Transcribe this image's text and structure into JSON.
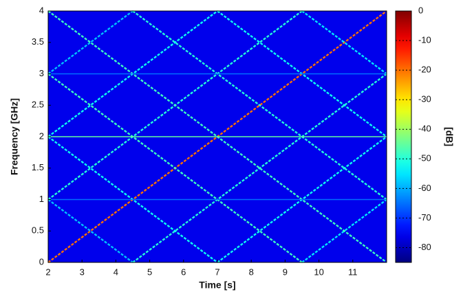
{
  "chart_data": {
    "type": "spectrogram",
    "xlabel": "Time [s]",
    "ylabel": "Frequency [GHz]",
    "colorbar_label": "[dB]",
    "xlim": [
      2,
      12
    ],
    "xticks": [
      2,
      3,
      4,
      5,
      6,
      7,
      8,
      9,
      10,
      11
    ],
    "ylim": [
      0,
      4
    ],
    "yticks": [
      0,
      0.5,
      1,
      1.5,
      2,
      2.5,
      3,
      3.5,
      4
    ],
    "clim": [
      -85,
      0
    ],
    "cticks": [
      0,
      -10,
      -20,
      -30,
      -40,
      -50,
      -60,
      -70,
      -80
    ],
    "colormap": "jet",
    "background_level": -76,
    "lines": [
      {
        "x": [
          2,
          12
        ],
        "y": [
          0,
          4
        ],
        "level": -20
      },
      {
        "x": [
          9.5,
          12
        ],
        "y": [
          0,
          1
        ],
        "level": -55
      },
      {
        "x": [
          7,
          12
        ],
        "y": [
          0,
          2
        ],
        "level": -52
      },
      {
        "x": [
          4.5,
          12
        ],
        "y": [
          0,
          3
        ],
        "level": -50
      },
      {
        "x": [
          2,
          9.5
        ],
        "y": [
          1,
          4
        ],
        "level": -50
      },
      {
        "x": [
          2,
          7
        ],
        "y": [
          2,
          4
        ],
        "level": -52
      },
      {
        "x": [
          2,
          4.5
        ],
        "y": [
          3,
          4
        ],
        "level": -58
      },
      {
        "x": [
          2,
          4.5
        ],
        "y": [
          1,
          0
        ],
        "level": -58
      },
      {
        "x": [
          2,
          7
        ],
        "y": [
          2,
          0
        ],
        "level": -52
      },
      {
        "x": [
          2,
          9.5
        ],
        "y": [
          3,
          0
        ],
        "level": -48
      },
      {
        "x": [
          2,
          12
        ],
        "y": [
          4,
          0
        ],
        "level": -48
      },
      {
        "x": [
          4.5,
          12
        ],
        "y": [
          4,
          1
        ],
        "level": -50
      },
      {
        "x": [
          7,
          12
        ],
        "y": [
          4,
          2
        ],
        "level": -52
      },
      {
        "x": [
          9.5,
          12
        ],
        "y": [
          4,
          3
        ],
        "level": -55
      },
      {
        "x": [
          2,
          12
        ],
        "y": [
          1,
          1
        ],
        "level": -65
      },
      {
        "x": [
          2,
          12
        ],
        "y": [
          2,
          2
        ],
        "level": -45
      },
      {
        "x": [
          2,
          12
        ],
        "y": [
          3,
          3
        ],
        "level": -65
      }
    ]
  }
}
